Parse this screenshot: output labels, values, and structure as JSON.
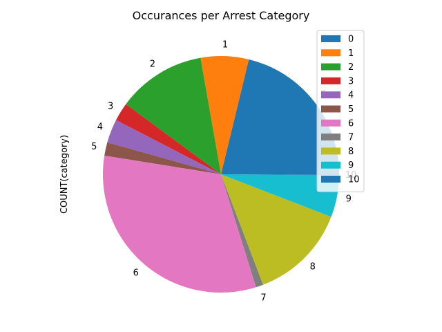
{
  "chart_data": {
    "type": "pie",
    "title": "Occurances per Arrest Category",
    "ylabel": "COUNT(category)",
    "start_angle_deg": 0,
    "direction": "counterclockwise",
    "legend_location": "upper-right",
    "slices": [
      {
        "label": "0",
        "value": 21.0,
        "color": "#1f77b4"
      },
      {
        "label": "1",
        "value": 6.5,
        "color": "#ff7f0e"
      },
      {
        "label": "2",
        "value": 12.0,
        "color": "#2ca02c"
      },
      {
        "label": "3",
        "value": 2.5,
        "color": "#d62728"
      },
      {
        "label": "4",
        "value": 3.2,
        "color": "#9467bd"
      },
      {
        "label": "5",
        "value": 1.8,
        "color": "#8c564b"
      },
      {
        "label": "6",
        "value": 32.0,
        "color": "#e377c2"
      },
      {
        "label": "7",
        "value": 1.0,
        "color": "#7f7f7f"
      },
      {
        "label": "8",
        "value": 13.2,
        "color": "#bcbd22"
      },
      {
        "label": "9",
        "value": 5.7,
        "color": "#17becf"
      },
      {
        "label": "10",
        "value": 0.1,
        "color": "#1f77b4"
      }
    ]
  }
}
